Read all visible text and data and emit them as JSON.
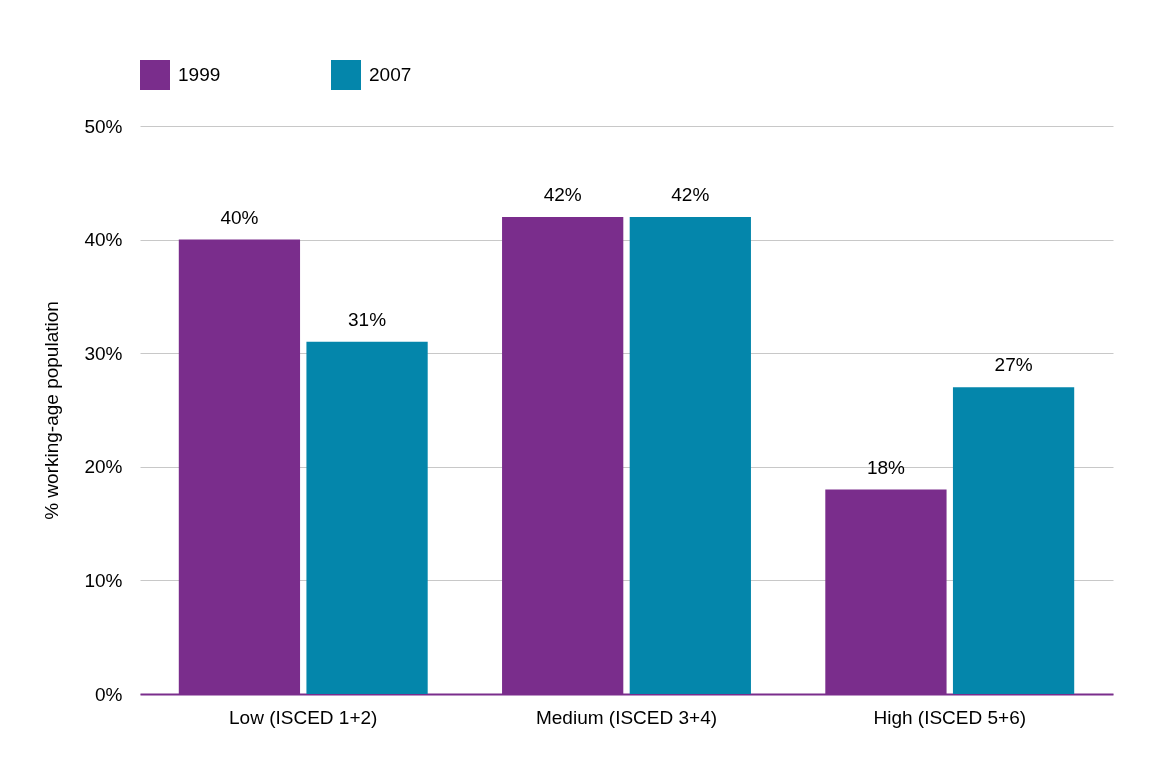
{
  "chart_data": {
    "type": "bar",
    "ylabel": "% working-age population",
    "categories": [
      "Low (ISCED 1+2)",
      "Medium (ISCED 3+4)",
      "High (ISCED 5+6)"
    ],
    "series": [
      {
        "name": "1999",
        "color": "#7a2d8c",
        "values": [
          40,
          42,
          18
        ],
        "value_labels": [
          "40%",
          "42%",
          "18%"
        ]
      },
      {
        "name": "2007",
        "color": "#0486ab",
        "values": [
          31,
          42,
          27
        ],
        "value_labels": [
          "31%",
          "42%",
          "27%"
        ]
      }
    ],
    "ylim": [
      0,
      50
    ],
    "yticks": [
      {
        "value": 0,
        "label": "0%"
      },
      {
        "value": 10,
        "label": "10%"
      },
      {
        "value": 20,
        "label": "20%"
      },
      {
        "value": 30,
        "label": "30%"
      },
      {
        "value": 40,
        "label": "40%"
      },
      {
        "value": 50,
        "label": "50%"
      }
    ],
    "grid": "y",
    "legend": "top left"
  }
}
